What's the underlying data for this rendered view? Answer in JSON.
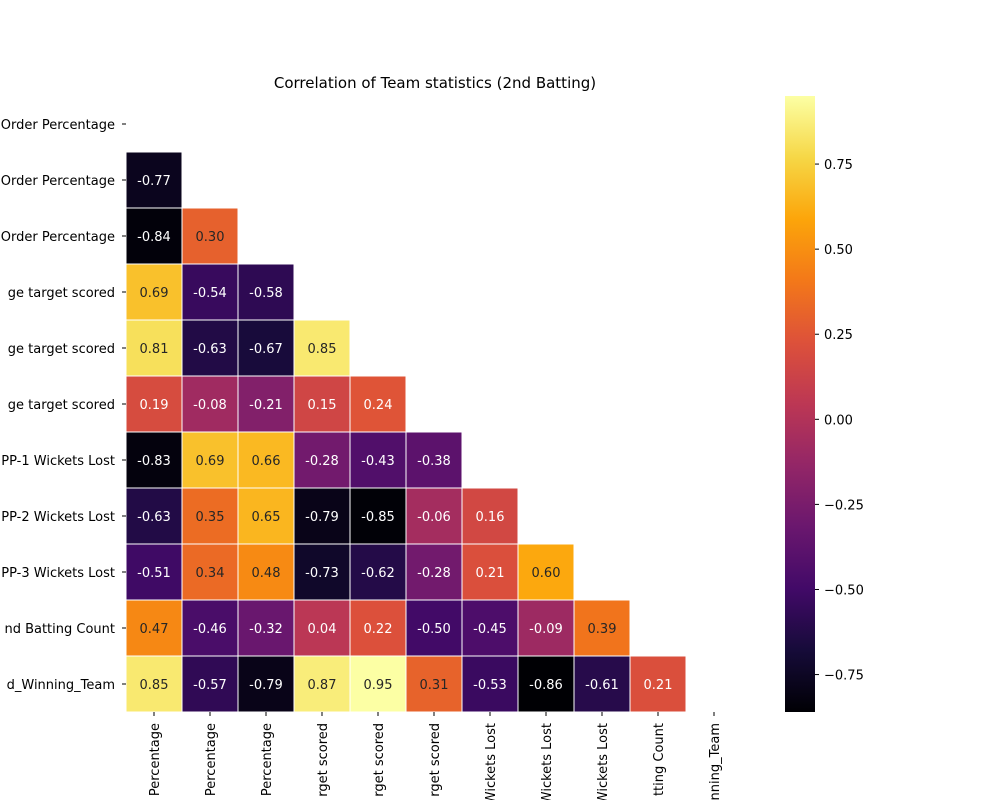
{
  "chart_data": {
    "type": "heatmap",
    "title": "Correlation of Team statistics (2nd Batting)",
    "colormap": "inferno",
    "mask": "upper-triangle",
    "row_labels": [
      "Order Percentage",
      "Order Percentage",
      "Order Percentage",
      "ge target scored",
      "ge target scored",
      "ge target scored",
      "PP-1 Wickets Lost",
      "PP-2 Wickets Lost",
      "PP-3 Wickets Lost",
      "nd Batting Count",
      "d_Winning_Team"
    ],
    "col_labels": [
      "Percentage",
      "Percentage",
      "Percentage",
      "rget scored",
      "rget scored",
      "rget scored",
      "Wickets Lost",
      "Wickets Lost",
      "Wickets Lost",
      "tting Count",
      "nning_Team"
    ],
    "values": [
      [],
      [
        -0.77
      ],
      [
        -0.84,
        0.3
      ],
      [
        0.69,
        -0.54,
        -0.58
      ],
      [
        0.81,
        -0.63,
        -0.67,
        0.85
      ],
      [
        0.19,
        -0.08,
        -0.21,
        0.15,
        0.24
      ],
      [
        -0.83,
        0.69,
        0.66,
        -0.28,
        -0.43,
        -0.38
      ],
      [
        -0.63,
        0.35,
        0.65,
        -0.79,
        -0.85,
        -0.06,
        0.16
      ],
      [
        -0.51,
        0.34,
        0.48,
        -0.73,
        -0.62,
        -0.28,
        0.21,
        0.6
      ],
      [
        0.47,
        -0.46,
        -0.32,
        0.04,
        0.22,
        -0.5,
        -0.45,
        -0.09,
        0.39
      ],
      [
        0.85,
        -0.57,
        -0.79,
        0.87,
        0.95,
        0.31,
        -0.53,
        -0.86,
        -0.61,
        0.21
      ]
    ],
    "vmin": -0.86,
    "vmax": 0.95,
    "colorbar_ticks": [
      0.75,
      0.5,
      0.25,
      0.0,
      -0.25,
      -0.5,
      -0.75
    ],
    "colorbar_tick_labels": [
      "0.75",
      "0.50",
      "0.25",
      "0.00",
      "−0.25",
      "−0.50",
      "−0.75"
    ]
  }
}
